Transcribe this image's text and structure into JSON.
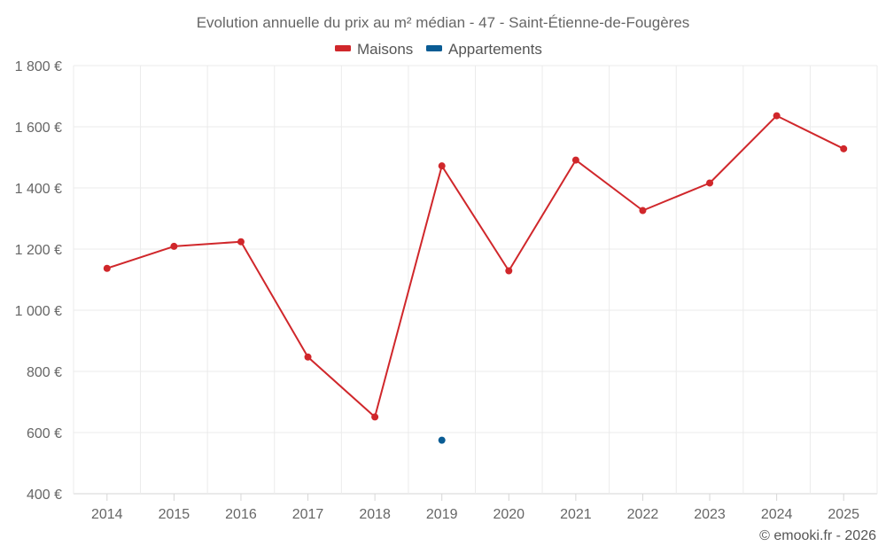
{
  "chart_data": {
    "type": "line",
    "title": "Evolution annuelle du prix au m² médian - 47 - Saint-Étienne-de-Fougères",
    "categories": [
      "2014",
      "2015",
      "2016",
      "2017",
      "2018",
      "2019",
      "2020",
      "2021",
      "2022",
      "2023",
      "2024",
      "2025"
    ],
    "series": [
      {
        "name": "Maisons",
        "color": "#d0272b",
        "values": [
          1137,
          1209,
          1224,
          847,
          651,
          1472,
          1129,
          1491,
          1326,
          1416,
          1636,
          1528
        ]
      },
      {
        "name": "Appartements",
        "color": "#0a5c94",
        "values": [
          null,
          null,
          null,
          null,
          null,
          575,
          null,
          null,
          null,
          null,
          null,
          null
        ]
      }
    ],
    "ylim": [
      400,
      1800
    ],
    "yticks": [
      400,
      600,
      800,
      1000,
      1200,
      1400,
      1600,
      1800
    ],
    "ytick_labels": [
      "400 €",
      "600 €",
      "800 €",
      "1 000 €",
      "1 200 €",
      "1 400 €",
      "1 600 €",
      "1 800 €"
    ],
    "xlabel": "",
    "ylabel": "",
    "grid": true,
    "legend_position": "top-center"
  },
  "credit": "© emooki.fr - 2026"
}
